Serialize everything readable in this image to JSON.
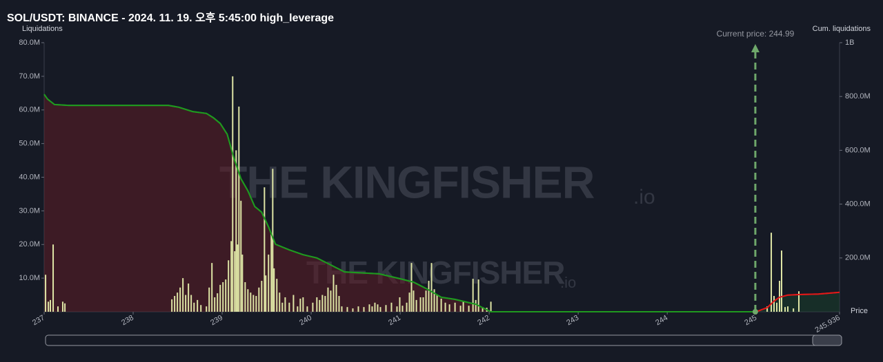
{
  "chart_data": {
    "type": "bar",
    "title": "SOL/USDT: BINANCE - 2024. 11. 19. 오후 5:45:00 high_leverage",
    "y_label": "Liquidations",
    "y2_label": "Cum. liquidations",
    "x_label": "Price",
    "annotation": {
      "text": "Current price: 244.99",
      "x": 244.99,
      "color": "#6fa86b"
    },
    "watermark": {
      "text": "THE KINGFISHER",
      "suffix": ".io"
    },
    "xlim": [
      237,
      245.936
    ],
    "xticks": [
      237,
      238,
      239,
      240,
      241,
      242,
      243,
      244,
      245,
      245.936
    ],
    "ylim": [
      0,
      80
    ],
    "yticks": [
      {
        "value": 10,
        "label": "10.0M"
      },
      {
        "value": 20,
        "label": "20.0M"
      },
      {
        "value": 30,
        "label": "30.0M"
      },
      {
        "value": 40,
        "label": "40.0M"
      },
      {
        "value": 50,
        "label": "50.0M"
      },
      {
        "value": 60,
        "label": "60.0M"
      },
      {
        "value": 70,
        "label": "70.0M"
      },
      {
        "value": 80,
        "label": "80.0M"
      }
    ],
    "y2lim": [
      0,
      1000
    ],
    "y2ticks": [
      {
        "value": 200,
        "label": "200.0M"
      },
      {
        "value": 400,
        "label": "400.0M"
      },
      {
        "value": 600,
        "label": "600.0M"
      },
      {
        "value": 800,
        "label": "800.0M"
      },
      {
        "value": 1000,
        "label": "1B"
      }
    ],
    "series": [
      {
        "type": "bar",
        "color": "#dfe6a6",
        "x": [
          237.016,
          237.047,
          237.07,
          237.101,
          237.155,
          237.209,
          237.233,
          238.435,
          238.466,
          238.497,
          238.528,
          238.559,
          238.59,
          238.621,
          238.652,
          238.684,
          238.722,
          238.761,
          238.823,
          238.854,
          238.885,
          238.916,
          238.947,
          238.978,
          239.009,
          239.04,
          239.071,
          239.102,
          239.118,
          239.141,
          239.157,
          239.172,
          239.188,
          239.211,
          239.227,
          239.258,
          239.289,
          239.32,
          239.351,
          239.382,
          239.413,
          239.444,
          239.475,
          239.49,
          239.521,
          239.552,
          239.568,
          239.583,
          239.614,
          239.645,
          239.676,
          239.708,
          239.754,
          239.801,
          239.847,
          239.878,
          239.909,
          239.956,
          240.018,
          240.064,
          240.095,
          240.126,
          240.157,
          240.189,
          240.22,
          240.251,
          240.282,
          240.313,
          240.344,
          240.406,
          240.468,
          240.53,
          240.592,
          240.654,
          240.685,
          240.716,
          240.747,
          240.778,
          240.84,
          240.902,
          240.964,
          240.995,
          241.026,
          241.073,
          241.104,
          241.127,
          241.15,
          241.182,
          241.228,
          241.259,
          241.29,
          241.321,
          241.352,
          241.383,
          241.414,
          241.461,
          241.507,
          241.554,
          241.616,
          241.678,
          241.709,
          241.771,
          241.818,
          241.849,
          241.88,
          241.926,
          241.973,
          242.019,
          245.123,
          245.169,
          245.2,
          245.231,
          245.262,
          245.285,
          245.324,
          245.355,
          245.418,
          245.479
        ],
        "values": [
          11,
          3,
          3.5,
          20,
          1.6,
          3,
          2.5,
          3.7,
          4.7,
          5.7,
          7.2,
          10,
          5,
          8.4,
          5,
          2.7,
          3.5,
          2,
          1.6,
          7.2,
          14.5,
          4.3,
          5.5,
          8,
          8.8,
          9.6,
          15.3,
          21,
          70,
          18,
          48,
          20,
          61,
          33,
          17,
          8.8,
          6.7,
          5.7,
          5,
          4.7,
          7.2,
          9.2,
          37,
          10.8,
          17,
          23,
          42.5,
          12.9,
          9.8,
          5.7,
          2.7,
          4.3,
          2.7,
          5,
          1.6,
          3.9,
          4.3,
          1.6,
          2.7,
          4.3,
          3.5,
          5,
          4.7,
          7.2,
          6.3,
          11,
          8,
          4.7,
          1.6,
          1.4,
          1,
          1.6,
          1.4,
          2.2,
          1.6,
          2.7,
          2.2,
          1.4,
          2,
          2.7,
          1.6,
          4.3,
          1.8,
          2.7,
          5.7,
          14.5,
          6.3,
          3.5,
          4.3,
          4.3,
          6.3,
          9.2,
          14.5,
          6.7,
          5,
          3.9,
          2.7,
          2.2,
          2.7,
          1.8,
          3,
          1.8,
          9.8,
          3.5,
          9.6,
          1.4,
          1.2,
          3,
          1.6,
          23.5,
          4.7,
          2.7,
          9.2,
          18.2,
          1.4,
          1.6,
          1,
          6.1
        ]
      },
      {
        "type": "line",
        "axis": "y2",
        "color": "#1f9a1f",
        "fill": "rgba(95,30,38,0.55)",
        "x": [
          237,
          237.039,
          237.116,
          237.272,
          238.396,
          238.513,
          238.668,
          238.823,
          238.901,
          238.978,
          239.056,
          239.133,
          239.211,
          239.288,
          239.366,
          239.444,
          239.521,
          239.599,
          239.754,
          239.909,
          240.064,
          240.22,
          240.375,
          240.763,
          240.995,
          241.15,
          241.306,
          241.461,
          241.616,
          241.849,
          241.926,
          242.019,
          245
        ],
        "values": [
          808,
          790,
          770,
          767,
          767,
          760,
          744,
          737,
          721,
          700,
          660,
          570,
          494,
          450,
          391,
          370,
          315,
          251,
          230,
          212,
          200,
          174,
          148,
          141,
          123,
          110,
          84,
          54,
          46,
          28,
          15,
          0,
          0
        ]
      },
      {
        "type": "line",
        "axis": "y2",
        "color": "#e01818",
        "fill": "rgba(25,70,45,0.45)",
        "x": [
          245,
          245.062,
          245.123,
          245.201,
          245.262,
          245.355,
          245.479,
          245.7,
          245.936
        ],
        "values": [
          0,
          8,
          15,
          40,
          54,
          62,
          64,
          66,
          72
        ]
      }
    ]
  }
}
